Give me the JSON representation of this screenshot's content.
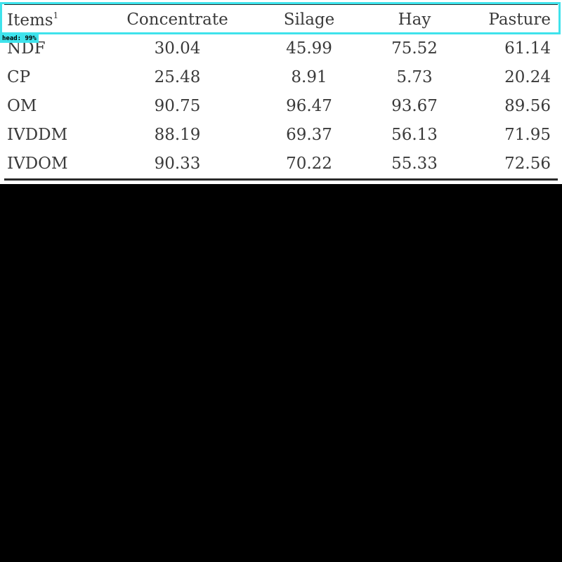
{
  "table": {
    "headers": {
      "items": "Items",
      "items_sup": "1",
      "concentrate": "Concentrate",
      "silage": "Silage",
      "hay": "Hay",
      "pasture": "Pasture"
    },
    "rows": [
      {
        "item": "NDF",
        "concentrate": "30.04",
        "silage": "45.99",
        "hay": "75.52",
        "pasture": "61.14"
      },
      {
        "item": "CP",
        "concentrate": "25.48",
        "silage": "8.91",
        "hay": "5.73",
        "pasture": "20.24"
      },
      {
        "item": "OM",
        "concentrate": "90.75",
        "silage": "96.47",
        "hay": "93.67",
        "pasture": "89.56"
      },
      {
        "item": "IVDDM",
        "concentrate": "88.19",
        "silage": "69.37",
        "hay": "56.13",
        "pasture": "71.95"
      },
      {
        "item": "IVDOM",
        "concentrate": "90.33",
        "silage": "70.22",
        "hay": "55.33",
        "pasture": "72.56"
      }
    ]
  },
  "annotation": {
    "label": "head: 99%",
    "color": "#3fe3ec"
  }
}
